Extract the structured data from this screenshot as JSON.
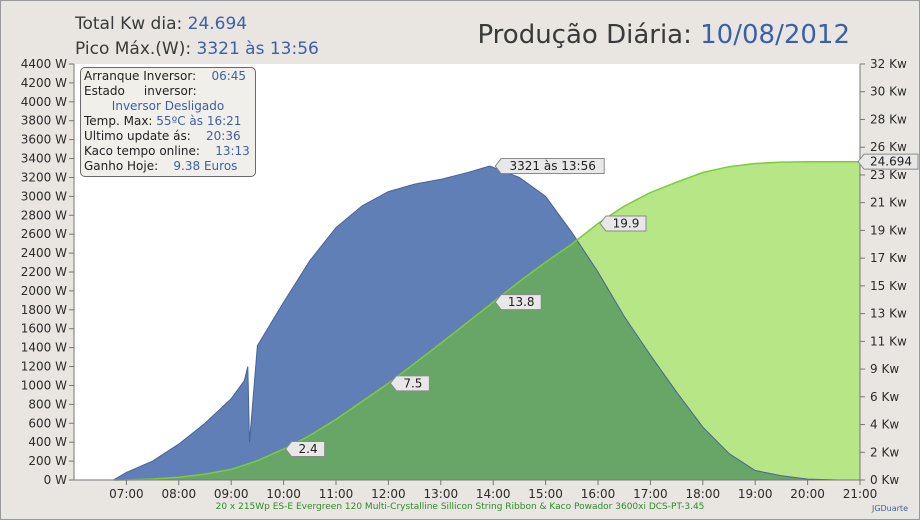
{
  "header": {
    "total_label": "Total Kw dia:",
    "total_value": "24.694",
    "peak_label": "Pico Máx.(W):",
    "peak_value": "3321 às 13:56",
    "title_label": "Produção Diária:",
    "title_date": "10/08/2012"
  },
  "info_box": {
    "startup_label": "Arranque Inversor:",
    "startup_value": "06:45",
    "state_label": "Estado     inversor:",
    "state_value": "Inversor Desligado",
    "temp_label": "Temp. Max:",
    "temp_value": "55ºC às 16:21",
    "update_label": "Ultimo update ás:",
    "update_value": "20:36",
    "online_label": "Kaco tempo online:",
    "online_value": "13:13",
    "gain_label": "Ganho Hoje:",
    "gain_value": "9.38 Euros"
  },
  "footer": {
    "system_text": "20 x 215Wp ES-E Evergreen 120 Multi-Crystalline Sillicon String Ribbon & Kaco Powador 3600xi DCS-PT-3.45",
    "credit": "JGDuarte"
  },
  "colors": {
    "power_fill": "#5f7fb6",
    "power_line": "#46649a",
    "energy_fill": "#b6e686",
    "energy_line": "#7ccc3a",
    "overlap_fill": "#68a668"
  },
  "chart_data": {
    "type": "area",
    "x_ticks": [
      "07:00",
      "08:00",
      "09:00",
      "10:00",
      "11:00",
      "12:00",
      "13:00",
      "14:00",
      "15:00",
      "16:00",
      "17:00",
      "18:00",
      "19:00",
      "20:00",
      "21:00"
    ],
    "x_range": [
      "06:00",
      "21:00"
    ],
    "y_left_ticks": [
      "0 W",
      "200 W",
      "400 W",
      "600 W",
      "800 W",
      "1000 W",
      "1200 W",
      "1400 W",
      "1600 W",
      "1800 W",
      "2000 W",
      "2200 W",
      "2400 W",
      "2600 W",
      "2800 W",
      "3000 W",
      "3200 W",
      "3400 W",
      "3600 W",
      "3800 W",
      "4000 W",
      "4200 W",
      "4400 W"
    ],
    "y_left_range": [
      0,
      4400
    ],
    "y_right_ticks": [
      "0 Kw",
      "2 Kw",
      "4 Kw",
      "6 Kw",
      "9 Kw",
      "11 Kw",
      "13 Kw",
      "15 Kw",
      "17 Kw",
      "19 Kw",
      "21 Kw",
      "23 Kw",
      "26 Kw",
      "28 Kw",
      "30 Kw",
      "32 Kw"
    ],
    "y_right_range": [
      0,
      32.27
    ],
    "grid": false,
    "series": [
      {
        "axis": "left",
        "times": [
          "06:45",
          "07:00",
          "07:30",
          "08:00",
          "08:30",
          "09:00",
          "09:15",
          "09:19",
          "09:21",
          "09:30",
          "10:00",
          "10:30",
          "11:00",
          "11:30",
          "12:00",
          "12:30",
          "13:00",
          "13:30",
          "13:56",
          "14:30",
          "15:00",
          "15:30",
          "16:00",
          "16:30",
          "17:00",
          "17:30",
          "18:00",
          "18:30",
          "19:00",
          "19:30",
          "20:00",
          "20:36"
        ],
        "values": [
          0,
          80,
          200,
          380,
          600,
          860,
          1050,
          1200,
          400,
          1420,
          1880,
          2320,
          2670,
          2900,
          3050,
          3130,
          3180,
          3250,
          3321,
          3200,
          3000,
          2620,
          2200,
          1730,
          1320,
          930,
          560,
          280,
          100,
          45,
          10,
          0
        ]
      },
      {
        "axis": "right",
        "times": [
          "06:45",
          "07:00",
          "07:30",
          "08:00",
          "08:30",
          "09:00",
          "09:30",
          "10:00",
          "10:30",
          "11:00",
          "11:30",
          "12:00",
          "12:30",
          "13:00",
          "13:30",
          "14:00",
          "14:30",
          "15:00",
          "15:30",
          "16:00",
          "16:30",
          "17:00",
          "17:30",
          "18:00",
          "18:30",
          "19:00",
          "19:30",
          "20:00",
          "20:36",
          "21:00"
        ],
        "values": [
          0,
          0.01,
          0.08,
          0.22,
          0.46,
          0.82,
          1.5,
          2.4,
          3.45,
          4.7,
          6.1,
          7.5,
          9.05,
          10.6,
          12.2,
          13.8,
          15.4,
          16.9,
          18.3,
          19.9,
          21.25,
          22.3,
          23.1,
          23.85,
          24.3,
          24.55,
          24.66,
          24.69,
          24.694,
          24.694
        ]
      }
    ],
    "annotations": [
      {
        "time": "14:00",
        "axis": "left",
        "value": 3321,
        "text": "3321 às 13:56"
      },
      {
        "time": "10:00",
        "axis": "right",
        "value": 2.4,
        "text": "2.4"
      },
      {
        "time": "12:00",
        "axis": "right",
        "value": 7.5,
        "text": "7.5"
      },
      {
        "time": "14:00",
        "axis": "right",
        "value": 13.8,
        "text": "13.8"
      },
      {
        "time": "16:00",
        "axis": "right",
        "value": 19.9,
        "text": "19.9"
      },
      {
        "time": "21:00",
        "axis": "right",
        "value": 24.694,
        "text": "24.694"
      }
    ]
  }
}
